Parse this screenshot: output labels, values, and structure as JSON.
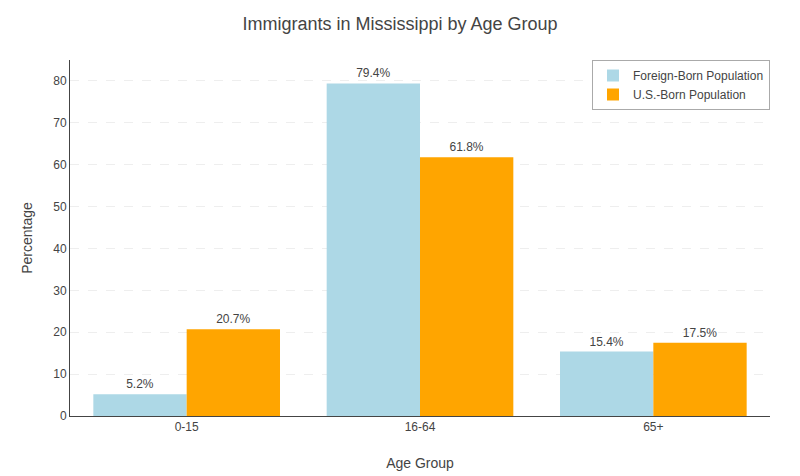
{
  "chart_data": {
    "type": "bar",
    "title": "Immigrants in Mississippi by Age Group",
    "xlabel": "Age Group",
    "ylabel": "Percentage",
    "categories": [
      "0-15",
      "16-64",
      "65+"
    ],
    "series": [
      {
        "name": "Foreign-Born Population",
        "color": "#add8e6",
        "values": [
          5.2,
          79.4,
          15.4
        ],
        "value_labels": [
          "5.2%",
          "79.4%",
          "15.4%"
        ]
      },
      {
        "name": "U.S.-Born Population",
        "color": "#FFA500",
        "values": [
          20.7,
          61.8,
          17.5
        ],
        "value_labels": [
          "20.7%",
          "61.8%",
          "17.5%"
        ]
      }
    ],
    "ylim": [
      0,
      85
    ],
    "yticks": [
      0,
      10,
      20,
      30,
      40,
      50,
      60,
      70,
      80
    ],
    "grid": true,
    "legend": "upper right",
    "data_labels": true
  }
}
